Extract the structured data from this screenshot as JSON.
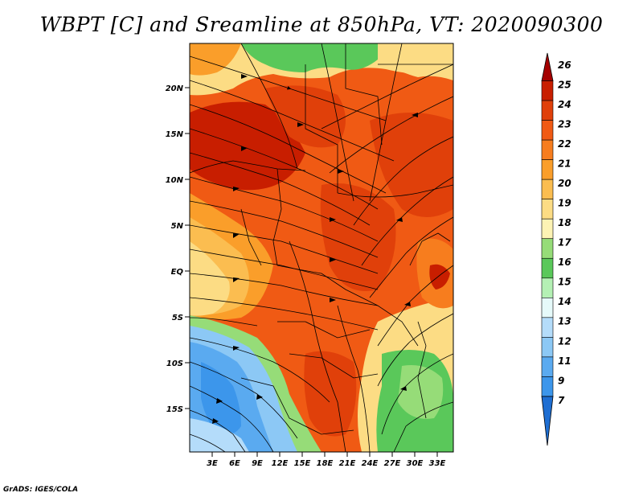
{
  "title": "WBPT [C] and Sreamline at 850hPa, VT: 2020090300",
  "credit": "GrADS: IGES/COLA",
  "map": {
    "lat_labels": [
      "20N",
      "15N",
      "10N",
      "5N",
      "EQ",
      "5S",
      "10S",
      "15S"
    ],
    "lon_labels": [
      "3E",
      "6E",
      "9E",
      "12E",
      "15E",
      "18E",
      "21E",
      "24E",
      "27E",
      "30E",
      "33E"
    ]
  },
  "colorbar": {
    "labels": [
      "26",
      "25",
      "24",
      "23",
      "22",
      "21",
      "20",
      "19",
      "18",
      "17",
      "16",
      "15",
      "14",
      "13",
      "12",
      "11",
      "9",
      "7"
    ],
    "colors": [
      "#a50000",
      "#c81e00",
      "#e0400a",
      "#f05a14",
      "#f77d1e",
      "#fa9e2a",
      "#fbbd50",
      "#fcdc84",
      "#fdf3b4",
      "#96dc78",
      "#5ac85a",
      "#b4f0b4",
      "#e6fafa",
      "#b4dcfa",
      "#8cc8f5",
      "#5aaaf0",
      "#3c96eb",
      "#1e6ed2"
    ]
  }
}
